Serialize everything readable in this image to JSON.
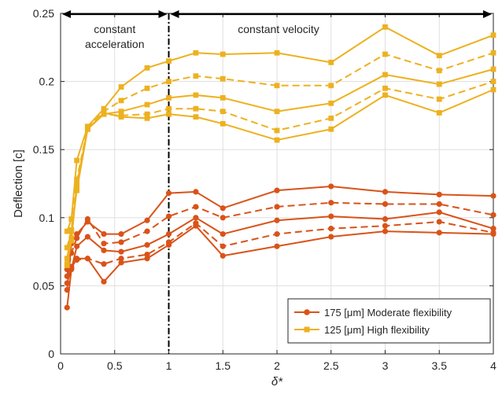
{
  "chart_data": {
    "type": "line",
    "xlabel": "δ*",
    "ylabel": "Deflection [c]",
    "xlim": [
      0,
      4
    ],
    "ylim": [
      0,
      0.25
    ],
    "xticks": [
      0,
      0.5,
      1,
      1.5,
      2,
      2.5,
      3,
      3.5,
      4
    ],
    "xtick_labels": [
      "0",
      "0.5",
      "1",
      "1.5",
      "2",
      "2.5",
      "3",
      "3.5",
      "4"
    ],
    "yticks": [
      0,
      0.05,
      0.1,
      0.15,
      0.2,
      0.25
    ],
    "ytick_labels": [
      "0",
      "0.05",
      "0.1",
      "0.15",
      "0.2",
      "0.25"
    ],
    "grid": true,
    "legend_position": "bottom-right",
    "annotations": {
      "left_region": [
        "constant",
        "acceleration"
      ],
      "right_region": "constant velocity",
      "divider_x": 1
    },
    "legend": [
      {
        "label": "175 [μm] Moderate flexibility",
        "color": "#D95319",
        "marker": "circle"
      },
      {
        "label": "125 [μm] High flexibility",
        "color": "#EDB120",
        "marker": "square"
      }
    ],
    "x": [
      0.06,
      0.1,
      0.15,
      0.25,
      0.4,
      0.56,
      0.8,
      1.0,
      1.25,
      1.5,
      2.0,
      2.5,
      3.0,
      3.5,
      4.0
    ],
    "series": [
      {
        "group": "175",
        "style": "solid",
        "color": "#D95319",
        "marker": "circle",
        "values": [
          0.047,
          0.081,
          0.088,
          0.097,
          0.088,
          0.088,
          0.098,
          0.118,
          0.119,
          0.107,
          0.12,
          0.123,
          0.119,
          0.117,
          0.116
        ]
      },
      {
        "group": "175",
        "style": "dashed",
        "color": "#D95319",
        "marker": "circle",
        "values": [
          0.057,
          0.074,
          0.085,
          0.099,
          0.081,
          0.082,
          0.09,
          0.101,
          0.108,
          0.1,
          0.108,
          0.111,
          0.11,
          0.11,
          0.102
        ]
      },
      {
        "group": "175",
        "style": "solid",
        "color": "#D95319",
        "marker": "circle",
        "values": [
          0.034,
          0.062,
          0.079,
          0.086,
          0.076,
          0.075,
          0.08,
          0.088,
          0.1,
          0.088,
          0.098,
          0.101,
          0.099,
          0.104,
          0.092
        ]
      },
      {
        "group": "175",
        "style": "dashed",
        "color": "#D95319",
        "marker": "circle",
        "values": [
          0.062,
          0.064,
          0.069,
          0.07,
          0.066,
          0.07,
          0.073,
          0.082,
          0.096,
          0.079,
          0.088,
          0.092,
          0.094,
          0.097,
          0.089
        ]
      },
      {
        "group": "175",
        "style": "solid",
        "color": "#D95319",
        "marker": "circle",
        "values": [
          0.052,
          0.063,
          0.07,
          0.07,
          0.053,
          0.067,
          0.07,
          0.08,
          0.094,
          0.072,
          0.079,
          0.086,
          0.09,
          0.089,
          0.088
        ]
      },
      {
        "group": "125",
        "style": "solid",
        "color": "#EDB120",
        "marker": "square",
        "values": [
          0.09,
          0.099,
          0.142,
          0.167,
          0.18,
          0.196,
          0.21,
          0.215,
          0.221,
          0.22,
          0.221,
          0.214,
          0.24,
          0.219,
          0.234
        ]
      },
      {
        "group": "125",
        "style": "dashed",
        "color": "#EDB120",
        "marker": "square",
        "values": [
          0.078,
          0.091,
          0.128,
          0.166,
          0.178,
          0.186,
          0.195,
          0.2,
          0.204,
          0.202,
          0.197,
          0.197,
          0.22,
          0.208,
          0.221
        ]
      },
      {
        "group": "125",
        "style": "solid",
        "color": "#EDB120",
        "marker": "square",
        "values": [
          0.07,
          0.09,
          0.12,
          0.165,
          0.176,
          0.178,
          0.183,
          0.188,
          0.19,
          0.188,
          0.178,
          0.184,
          0.205,
          0.198,
          0.209
        ]
      },
      {
        "group": "125",
        "style": "dashed",
        "color": "#EDB120",
        "marker": "square",
        "values": [
          0.066,
          0.085,
          0.123,
          0.165,
          0.176,
          0.175,
          0.176,
          0.18,
          0.18,
          0.178,
          0.164,
          0.173,
          0.195,
          0.187,
          0.2
        ]
      },
      {
        "group": "125",
        "style": "solid",
        "color": "#EDB120",
        "marker": "square",
        "values": [
          0.065,
          0.083,
          0.125,
          0.165,
          0.177,
          0.174,
          0.173,
          0.176,
          0.174,
          0.169,
          0.157,
          0.165,
          0.19,
          0.177,
          0.194
        ]
      }
    ]
  }
}
